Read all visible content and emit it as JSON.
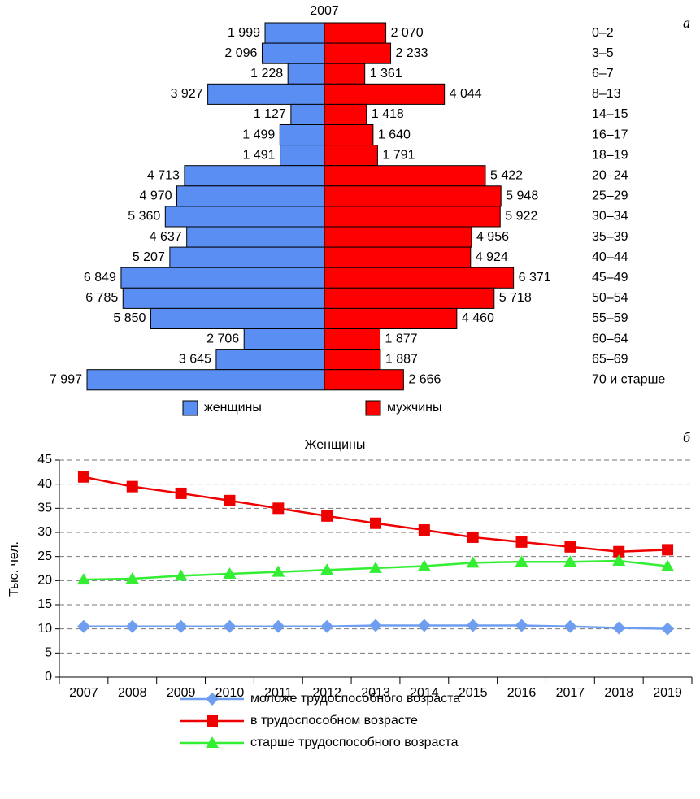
{
  "chart_data": [
    {
      "type": "pyramid",
      "title": "2007",
      "panel_label": "а",
      "categories": [
        "0–2",
        "3–5",
        "6–7",
        "8–13",
        "14–15",
        "16–17",
        "18–19",
        "20–24",
        "25–29",
        "30–34",
        "35–39",
        "40–44",
        "45–49",
        "50–54",
        "55–59",
        "60–64",
        "65–69",
        "70 и старше"
      ],
      "series": [
        {
          "name": "женщины",
          "color": "#5b8ef2",
          "side": "left",
          "values": [
            1999,
            2096,
            1228,
            3927,
            1127,
            1499,
            1491,
            4713,
            4970,
            5360,
            4637,
            5207,
            6849,
            6785,
            5850,
            2706,
            3645,
            7997
          ],
          "value_labels": [
            "1 999",
            "2 096",
            "1 228",
            "3 927",
            "1 127",
            "1 499",
            "1 491",
            "4 713",
            "4 970",
            "5 360",
            "4 637",
            "5 207",
            "6 849",
            "6 785",
            "5 850",
            "2 706",
            "3 645",
            "7 997"
          ]
        },
        {
          "name": "мужчины",
          "color": "#ff0000",
          "side": "right",
          "values": [
            2070,
            2233,
            1361,
            4044,
            1418,
            1640,
            1791,
            5422,
            5948,
            5922,
            4956,
            4924,
            6371,
            5718,
            4460,
            1877,
            1887,
            2666
          ],
          "value_labels": [
            "2 070",
            "2 233",
            "1 361",
            "4 044",
            "1 418",
            "1 640",
            "1 791",
            "5 422",
            "5 948",
            "5 922",
            "4 956",
            "4 924",
            "6 371",
            "5 718",
            "4 460",
            "1 877",
            "1 887",
            "2 666"
          ]
        }
      ]
    },
    {
      "type": "line",
      "title": "Женщины",
      "panel_label": "б",
      "y_label": "Тыс. чел.",
      "categories": [
        "2007",
        "2008",
        "2009",
        "2010",
        "2011",
        "2012",
        "2013",
        "2014",
        "2015",
        "2016",
        "2017",
        "2018",
        "2019"
      ],
      "ylim": [
        0,
        45
      ],
      "yticks": [
        0,
        5,
        10,
        15,
        20,
        25,
        30,
        35,
        40,
        45
      ],
      "grid": true,
      "series": [
        {
          "name": "моложе трудоспособного возраста",
          "color": "#6f9ef0",
          "marker": "diamond",
          "values": [
            10.5,
            10.5,
            10.5,
            10.5,
            10.5,
            10.5,
            10.7,
            10.7,
            10.7,
            10.7,
            10.5,
            10.2,
            10.0
          ]
        },
        {
          "name": "в трудоспособном возрасте",
          "color": "#ee0000",
          "marker": "square",
          "values": [
            41.5,
            39.5,
            38.1,
            36.6,
            35.0,
            33.4,
            31.9,
            30.5,
            29.0,
            28.0,
            27.0,
            26.0,
            26.4
          ]
        },
        {
          "name": "старше трудоспособного возраста",
          "color": "#33ee33",
          "marker": "triangle",
          "values": [
            20.2,
            20.4,
            21.0,
            21.4,
            21.8,
            22.2,
            22.6,
            23.0,
            23.7,
            23.9,
            23.9,
            24.1,
            23.0
          ]
        }
      ]
    }
  ]
}
